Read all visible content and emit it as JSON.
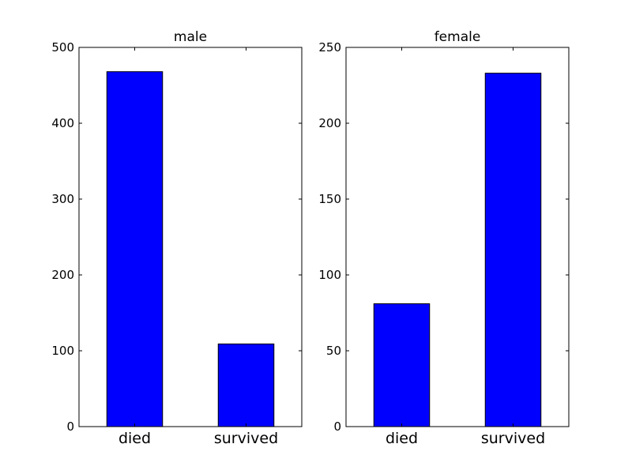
{
  "figure": {
    "background": "#ffffff"
  },
  "chart_data": [
    {
      "type": "bar",
      "title": "male",
      "categories": [
        "died",
        "survived"
      ],
      "values": [
        468,
        109
      ],
      "ylim": [
        0,
        500
      ],
      "yticks": [
        "0",
        "100",
        "200",
        "300",
        "400",
        "500"
      ],
      "xlabel": "",
      "ylabel": "",
      "bar_color": "#0000ff",
      "edge_color": "#000000",
      "grid": false,
      "legend": "none"
    },
    {
      "type": "bar",
      "title": "female",
      "categories": [
        "died",
        "survived"
      ],
      "values": [
        81,
        233
      ],
      "ylim": [
        0,
        250
      ],
      "yticks": [
        "0",
        "50",
        "100",
        "150",
        "200",
        "250"
      ],
      "xlabel": "",
      "ylabel": "",
      "bar_color": "#0000ff",
      "edge_color": "#000000",
      "grid": false,
      "legend": "none"
    }
  ]
}
